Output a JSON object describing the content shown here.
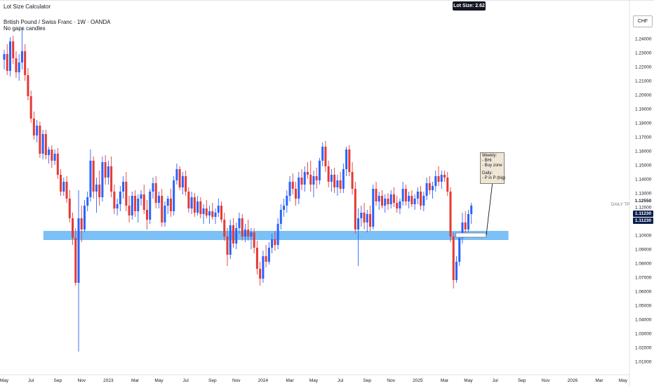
{
  "header": {
    "indicator_name": "Lot Size Calculator",
    "symbol_title": "British Pound / Swiss Franc · 1W · OANDA",
    "subtitle": "No gaps candles"
  },
  "badges": {
    "lot_size": "Lot Size: 2.62",
    "currency": "CHF"
  },
  "annotations": {
    "tp_label": "DAILY TP",
    "tp_price": "1.12550",
    "price_tag_1": "1.11230",
    "price_tag_2": "1.11230",
    "note_lines": [
      "Weekly:",
      "- BHI",
      "- Buy zone",
      "",
      "Daily:",
      "- P in P (big)"
    ]
  },
  "colors": {
    "bull": "#2962ff",
    "bear": "#e53935",
    "zone": "#64b5f6",
    "price_tag": "#0b1f4d"
  },
  "chart_data": {
    "type": "candlestick",
    "title": "British Pound / Swiss Franc · 1W · OANDA",
    "xlabel": "",
    "ylabel": "",
    "ylim": [
      1.0,
      1.25
    ],
    "y_ticks": [
      "1.24000",
      "1.23000",
      "1.22000",
      "1.21000",
      "1.20000",
      "1.19000",
      "1.18000",
      "1.17000",
      "1.16000",
      "1.15000",
      "1.14000",
      "1.13000",
      "1.12000",
      "1.11000",
      "1.10000",
      "1.09000",
      "1.08000",
      "1.07000",
      "1.06000",
      "1.05000",
      "1.04000",
      "1.03000",
      "1.02000",
      "1.01000"
    ],
    "y_tick_values": [
      1.24,
      1.23,
      1.22,
      1.21,
      1.2,
      1.19,
      1.18,
      1.17,
      1.16,
      1.15,
      1.14,
      1.13,
      1.12,
      1.11,
      1.1,
      1.09,
      1.08,
      1.07,
      1.06,
      1.05,
      1.04,
      1.03,
      1.02,
      1.01
    ],
    "x_ticks": [
      "May",
      "Jul",
      "Sep",
      "Nov",
      "2023",
      "Mar",
      "May",
      "Jul",
      "Sep",
      "Nov",
      "2024",
      "Mar",
      "May",
      "Jul",
      "Sep",
      "Nov",
      "2025",
      "Mar",
      "May",
      "Jul",
      "Sep",
      "Nov",
      "2026",
      "Mar",
      "May"
    ],
    "x_tick_index": [
      0,
      9,
      18,
      26,
      35,
      44,
      52,
      61,
      70,
      78,
      87,
      96,
      104,
      113,
      122,
      130,
      139,
      148,
      156,
      165,
      174,
      182,
      191,
      200,
      208
    ],
    "buy_zone": {
      "from_index": 16,
      "to_index": 165,
      "low": 1.097,
      "high": 1.102
    },
    "daily_tp": {
      "price": 1.1255,
      "from_index": 155
    },
    "candles_ohlc": [
      [
        1.225,
        1.232,
        1.218,
        1.229
      ],
      [
        1.229,
        1.236,
        1.214,
        1.217
      ],
      [
        1.217,
        1.241,
        1.213,
        1.238
      ],
      [
        1.238,
        1.242,
        1.222,
        1.226
      ],
      [
        1.226,
        1.231,
        1.212,
        1.216
      ],
      [
        1.216,
        1.229,
        1.21,
        1.223
      ],
      [
        1.223,
        1.248,
        1.218,
        1.231
      ],
      [
        1.231,
        1.236,
        1.21,
        1.214
      ],
      [
        1.214,
        1.219,
        1.196,
        1.199
      ],
      [
        1.199,
        1.203,
        1.18,
        1.183
      ],
      [
        1.183,
        1.188,
        1.168,
        1.171
      ],
      [
        1.171,
        1.182,
        1.166,
        1.178
      ],
      [
        1.178,
        1.181,
        1.155,
        1.158
      ],
      [
        1.158,
        1.175,
        1.154,
        1.172
      ],
      [
        1.172,
        1.175,
        1.154,
        1.157
      ],
      [
        1.157,
        1.163,
        1.151,
        1.161
      ],
      [
        1.161,
        1.164,
        1.148,
        1.153
      ],
      [
        1.153,
        1.161,
        1.15,
        1.158
      ],
      [
        1.158,
        1.162,
        1.14,
        1.143
      ],
      [
        1.143,
        1.147,
        1.128,
        1.131
      ],
      [
        1.131,
        1.141,
        1.128,
        1.138
      ],
      [
        1.138,
        1.142,
        1.123,
        1.126
      ],
      [
        1.126,
        1.132,
        1.109,
        1.112
      ],
      [
        1.112,
        1.116,
        1.093,
        1.098
      ],
      [
        1.098,
        1.105,
        1.064,
        1.066
      ],
      [
        1.066,
        1.132,
        1.017,
        1.112
      ],
      [
        1.112,
        1.121,
        1.095,
        1.104
      ],
      [
        1.104,
        1.125,
        1.102,
        1.121
      ],
      [
        1.121,
        1.131,
        1.117,
        1.127
      ],
      [
        1.127,
        1.161,
        1.124,
        1.153
      ],
      [
        1.153,
        1.156,
        1.126,
        1.131
      ],
      [
        1.131,
        1.141,
        1.116,
        1.136
      ],
      [
        1.136,
        1.146,
        1.121,
        1.127
      ],
      [
        1.127,
        1.156,
        1.124,
        1.152
      ],
      [
        1.152,
        1.157,
        1.136,
        1.141
      ],
      [
        1.141,
        1.153,
        1.136,
        1.149
      ],
      [
        1.149,
        1.156,
        1.127,
        1.131
      ],
      [
        1.131,
        1.136,
        1.115,
        1.119
      ],
      [
        1.119,
        1.126,
        1.114,
        1.122
      ],
      [
        1.122,
        1.135,
        1.117,
        1.131
      ],
      [
        1.131,
        1.142,
        1.126,
        1.138
      ],
      [
        1.138,
        1.145,
        1.117,
        1.121
      ],
      [
        1.121,
        1.128,
        1.109,
        1.114
      ],
      [
        1.114,
        1.131,
        1.111,
        1.128
      ],
      [
        1.128,
        1.132,
        1.113,
        1.117
      ],
      [
        1.117,
        1.129,
        1.109,
        1.126
      ],
      [
        1.126,
        1.132,
        1.121,
        1.129
      ],
      [
        1.129,
        1.136,
        1.115,
        1.118
      ],
      [
        1.118,
        1.125,
        1.104,
        1.111
      ],
      [
        1.111,
        1.133,
        1.108,
        1.131
      ],
      [
        1.131,
        1.141,
        1.126,
        1.137
      ],
      [
        1.137,
        1.142,
        1.119,
        1.123
      ],
      [
        1.123,
        1.131,
        1.119,
        1.128
      ],
      [
        1.128,
        1.133,
        1.106,
        1.109
      ],
      [
        1.109,
        1.124,
        1.106,
        1.121
      ],
      [
        1.121,
        1.128,
        1.115,
        1.126
      ],
      [
        1.126,
        1.133,
        1.113,
        1.117
      ],
      [
        1.117,
        1.142,
        1.114,
        1.139
      ],
      [
        1.139,
        1.151,
        1.136,
        1.147
      ],
      [
        1.147,
        1.149,
        1.132,
        1.134
      ],
      [
        1.134,
        1.145,
        1.129,
        1.142
      ],
      [
        1.142,
        1.146,
        1.128,
        1.131
      ],
      [
        1.131,
        1.134,
        1.116,
        1.119
      ],
      [
        1.119,
        1.131,
        1.115,
        1.127
      ],
      [
        1.127,
        1.13,
        1.113,
        1.116
      ],
      [
        1.116,
        1.128,
        1.114,
        1.124
      ],
      [
        1.124,
        1.127,
        1.112,
        1.115
      ],
      [
        1.115,
        1.122,
        1.108,
        1.119
      ],
      [
        1.119,
        1.125,
        1.112,
        1.114
      ],
      [
        1.114,
        1.121,
        1.108,
        1.117
      ],
      [
        1.117,
        1.123,
        1.111,
        1.113
      ],
      [
        1.113,
        1.119,
        1.108,
        1.116
      ],
      [
        1.116,
        1.126,
        1.113,
        1.121
      ],
      [
        1.121,
        1.124,
        1.109,
        1.111
      ],
      [
        1.111,
        1.116,
        1.096,
        1.099
      ],
      [
        1.099,
        1.105,
        1.078,
        1.086
      ],
      [
        1.086,
        1.111,
        1.083,
        1.107
      ],
      [
        1.107,
        1.112,
        1.091,
        1.094
      ],
      [
        1.094,
        1.109,
        1.09,
        1.105
      ],
      [
        1.105,
        1.116,
        1.101,
        1.112
      ],
      [
        1.112,
        1.115,
        1.096,
        1.099
      ],
      [
        1.099,
        1.108,
        1.095,
        1.104
      ],
      [
        1.104,
        1.111,
        1.096,
        1.099
      ],
      [
        1.099,
        1.105,
        1.09,
        1.102
      ],
      [
        1.102,
        1.105,
        1.087,
        1.091
      ],
      [
        1.091,
        1.096,
        1.072,
        1.076
      ],
      [
        1.076,
        1.081,
        1.064,
        1.069
      ],
      [
        1.069,
        1.089,
        1.066,
        1.085
      ],
      [
        1.085,
        1.093,
        1.077,
        1.081
      ],
      [
        1.081,
        1.095,
        1.079,
        1.091
      ],
      [
        1.091,
        1.101,
        1.087,
        1.097
      ],
      [
        1.097,
        1.103,
        1.089,
        1.093
      ],
      [
        1.093,
        1.112,
        1.09,
        1.108
      ],
      [
        1.108,
        1.122,
        1.104,
        1.118
      ],
      [
        1.118,
        1.126,
        1.113,
        1.121
      ],
      [
        1.121,
        1.132,
        1.116,
        1.128
      ],
      [
        1.128,
        1.142,
        1.124,
        1.138
      ],
      [
        1.138,
        1.144,
        1.129,
        1.133
      ],
      [
        1.133,
        1.138,
        1.121,
        1.126
      ],
      [
        1.126,
        1.145,
        1.122,
        1.141
      ],
      [
        1.141,
        1.147,
        1.132,
        1.136
      ],
      [
        1.136,
        1.149,
        1.131,
        1.145
      ],
      [
        1.145,
        1.152,
        1.14,
        1.143
      ],
      [
        1.143,
        1.153,
        1.131,
        1.136
      ],
      [
        1.136,
        1.146,
        1.127,
        1.142
      ],
      [
        1.142,
        1.148,
        1.133,
        1.139
      ],
      [
        1.139,
        1.155,
        1.136,
        1.153
      ],
      [
        1.153,
        1.166,
        1.149,
        1.163
      ],
      [
        1.163,
        1.167,
        1.145,
        1.149
      ],
      [
        1.149,
        1.153,
        1.134,
        1.138
      ],
      [
        1.138,
        1.147,
        1.131,
        1.143
      ],
      [
        1.143,
        1.148,
        1.13,
        1.134
      ],
      [
        1.134,
        1.143,
        1.128,
        1.139
      ],
      [
        1.139,
        1.145,
        1.13,
        1.133
      ],
      [
        1.133,
        1.151,
        1.13,
        1.147
      ],
      [
        1.147,
        1.163,
        1.142,
        1.161
      ],
      [
        1.161,
        1.164,
        1.142,
        1.145
      ],
      [
        1.145,
        1.152,
        1.129,
        1.133
      ],
      [
        1.133,
        1.138,
        1.101,
        1.104
      ],
      [
        1.104,
        1.119,
        1.078,
        1.112
      ],
      [
        1.112,
        1.121,
        1.106,
        1.116
      ],
      [
        1.116,
        1.123,
        1.104,
        1.109
      ],
      [
        1.109,
        1.118,
        1.102,
        1.115
      ],
      [
        1.115,
        1.121,
        1.103,
        1.106
      ],
      [
        1.106,
        1.136,
        1.104,
        1.133
      ],
      [
        1.133,
        1.138,
        1.121,
        1.124
      ],
      [
        1.124,
        1.131,
        1.118,
        1.128
      ],
      [
        1.128,
        1.132,
        1.119,
        1.121
      ],
      [
        1.121,
        1.129,
        1.116,
        1.126
      ],
      [
        1.126,
        1.13,
        1.118,
        1.122
      ],
      [
        1.122,
        1.132,
        1.119,
        1.129
      ],
      [
        1.129,
        1.134,
        1.12,
        1.123
      ],
      [
        1.123,
        1.128,
        1.116,
        1.119
      ],
      [
        1.119,
        1.126,
        1.115,
        1.124
      ],
      [
        1.124,
        1.138,
        1.121,
        1.133
      ],
      [
        1.133,
        1.136,
        1.121,
        1.124
      ],
      [
        1.124,
        1.131,
        1.119,
        1.128
      ],
      [
        1.128,
        1.132,
        1.12,
        1.122
      ],
      [
        1.122,
        1.129,
        1.118,
        1.126
      ],
      [
        1.126,
        1.134,
        1.122,
        1.131
      ],
      [
        1.131,
        1.135,
        1.118,
        1.121
      ],
      [
        1.121,
        1.131,
        1.117,
        1.128
      ],
      [
        1.128,
        1.141,
        1.125,
        1.137
      ],
      [
        1.137,
        1.142,
        1.129,
        1.132
      ],
      [
        1.132,
        1.138,
        1.126,
        1.135
      ],
      [
        1.135,
        1.146,
        1.131,
        1.142
      ],
      [
        1.142,
        1.149,
        1.135,
        1.138
      ],
      [
        1.138,
        1.146,
        1.133,
        1.143
      ],
      [
        1.143,
        1.146,
        1.138,
        1.141
      ],
      [
        1.141,
        1.145,
        1.128,
        1.131
      ],
      [
        1.131,
        1.134,
        1.095,
        1.099
      ],
      [
        1.099,
        1.102,
        1.062,
        1.068
      ],
      [
        1.068,
        1.085,
        1.066,
        1.081
      ],
      [
        1.081,
        1.101,
        1.078,
        1.098
      ],
      [
        1.098,
        1.116,
        1.094,
        1.109
      ],
      [
        1.109,
        1.117,
        1.1,
        1.104
      ],
      [
        1.104,
        1.118,
        1.102,
        1.115
      ],
      [
        1.115,
        1.123,
        1.108,
        1.121
      ]
    ]
  }
}
